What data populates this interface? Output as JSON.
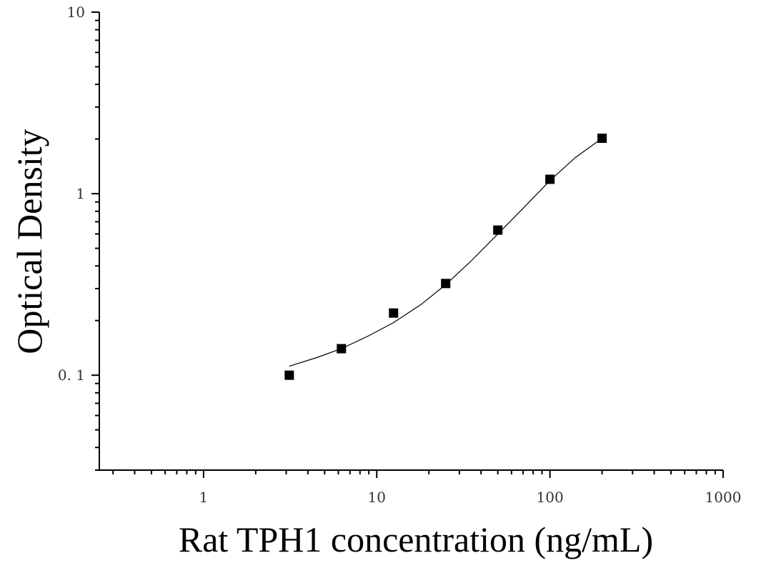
{
  "chart_data": {
    "type": "scatter",
    "title": "",
    "xlabel": "Rat TPH1 concentration (ng/mL)",
    "ylabel": "Optical Density",
    "x_scale": "log",
    "y_scale": "log",
    "xlim": [
      0.25,
      1000
    ],
    "ylim": [
      0.03,
      10
    ],
    "x_ticks": [
      {
        "value": 1,
        "label": "1"
      },
      {
        "value": 10,
        "label": "10"
      },
      {
        "value": 100,
        "label": "100"
      },
      {
        "value": 1000,
        "label": "1000"
      }
    ],
    "y_ticks": [
      {
        "value": 0.1,
        "label": "0. 1"
      },
      {
        "value": 1,
        "label": "1"
      },
      {
        "value": 10,
        "label": "10"
      }
    ],
    "grid": false,
    "series": [
      {
        "marker": "square",
        "color": "#000000",
        "x": [
          3.125,
          6.25,
          12.5,
          25,
          50,
          100,
          200
        ],
        "y": [
          0.1,
          0.14,
          0.22,
          0.32,
          0.63,
          1.2,
          2.02
        ]
      }
    ],
    "fit_curve": {
      "color": "#000000",
      "x": [
        3.125,
        4.5,
        6.25,
        9,
        12.5,
        18,
        25,
        35,
        50,
        70,
        100,
        140,
        200
      ],
      "y": [
        0.112,
        0.125,
        0.14,
        0.165,
        0.195,
        0.245,
        0.315,
        0.425,
        0.6,
        0.83,
        1.18,
        1.58,
        2.02
      ]
    }
  }
}
